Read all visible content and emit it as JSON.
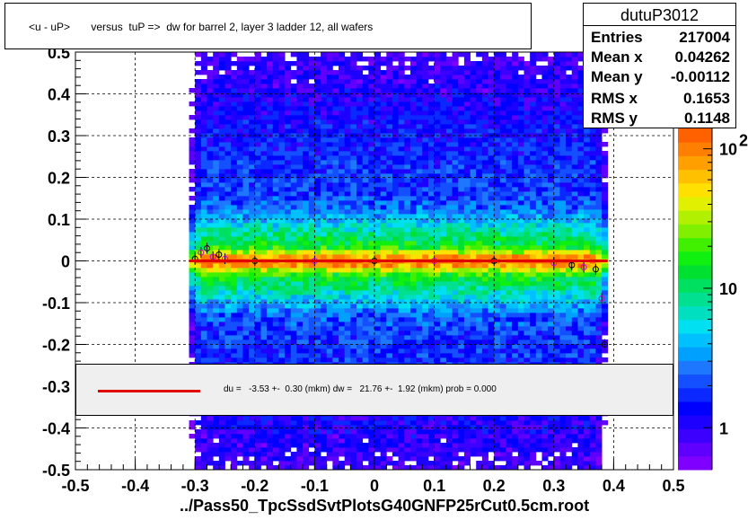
{
  "title": "<u - uP>       versus  tuP =>  dw for barrel 2, layer 3 ladder 12, all wafers",
  "stats": {
    "name": "dutuP3012",
    "rows": [
      {
        "label": "Entries",
        "value": "217004"
      },
      {
        "label": "Mean x",
        "value": "0.04262"
      },
      {
        "label": "Mean y",
        "value": "-0.00112"
      },
      {
        "label": "RMS x",
        "value": "0.1653"
      },
      {
        "label": "RMS y",
        "value": "0.1148"
      }
    ]
  },
  "fit": {
    "text": "du =   -3.53 +-  0.30 (mkm) dw =   21.76 +-  1.92 (mkm) prob = 0.000",
    "line_color": "#e00000"
  },
  "filename": "../Pass50_TpcSsdSvtPlotsG40GNFP25rCut0.5cm.root",
  "colorbar": {
    "labels": [
      {
        "base": "10",
        "exp": "2",
        "value": 100
      },
      {
        "base": "10",
        "exp": "",
        "value": 10
      },
      {
        "base": "1",
        "exp": "",
        "value": 1
      }
    ],
    "range": [
      0.5,
      140
    ],
    "colors": [
      "#7f00ff",
      "#5f00ff",
      "#3c00ff",
      "#1e00ff",
      "#0000ff",
      "#0a28ff",
      "#1450ff",
      "#1e78ff",
      "#00a0ff",
      "#00c0ff",
      "#00e0f0",
      "#00e0c0",
      "#00e090",
      "#00e060",
      "#00e030",
      "#10f010",
      "#40f000",
      "#80f000",
      "#b0f000",
      "#e0f000",
      "#ffe000",
      "#ffc000",
      "#ffa000",
      "#ff8000",
      "#ff6000"
    ]
  },
  "chart_data": {
    "type": "heatmap",
    "title": "<u - uP>       versus  tuP =>  dw for barrel 2, layer 3 ladder 12, all wafers",
    "xlabel": "../Pass50_TpcSsdSvtPlotsG40GNFP25rCut0.5cm.root",
    "ylabel": "",
    "xlim": [
      -0.5,
      0.5
    ],
    "ylim": [
      -0.5,
      0.5
    ],
    "x_ticks": [
      "-0.5",
      "-0.4",
      "-0.3",
      "-0.2",
      "-0.1",
      "0",
      "0.1",
      "0.2",
      "0.3",
      "0.4",
      "0.5"
    ],
    "y_ticks": [
      "-0.5",
      "-0.4",
      "-0.3",
      "-0.2",
      "-0.1",
      "0",
      "0.1",
      "0.2",
      "0.3",
      "0.4",
      "0.5"
    ],
    "z_scale": "log",
    "grid": true,
    "data_x_range": [
      -0.31,
      0.39
    ],
    "profile_points": {
      "x": [
        -0.3,
        -0.29,
        -0.28,
        -0.27,
        -0.26,
        -0.25,
        -0.2,
        -0.1,
        0,
        0.1,
        0.2,
        0.3,
        0.33,
        0.35,
        0.37,
        0.38,
        0.385
      ],
      "y": [
        0.005,
        0.02,
        0.03,
        0.01,
        0.015,
        0.005,
        0.0,
        0.0,
        0.0,
        0.0,
        0.0,
        -0.005,
        -0.01,
        -0.015,
        -0.02,
        -0.09,
        -0.2
      ]
    },
    "fit_line": {
      "x": [
        -0.31,
        0.39
      ],
      "y": [
        0.0,
        0.0
      ],
      "color": "#e00000"
    }
  }
}
